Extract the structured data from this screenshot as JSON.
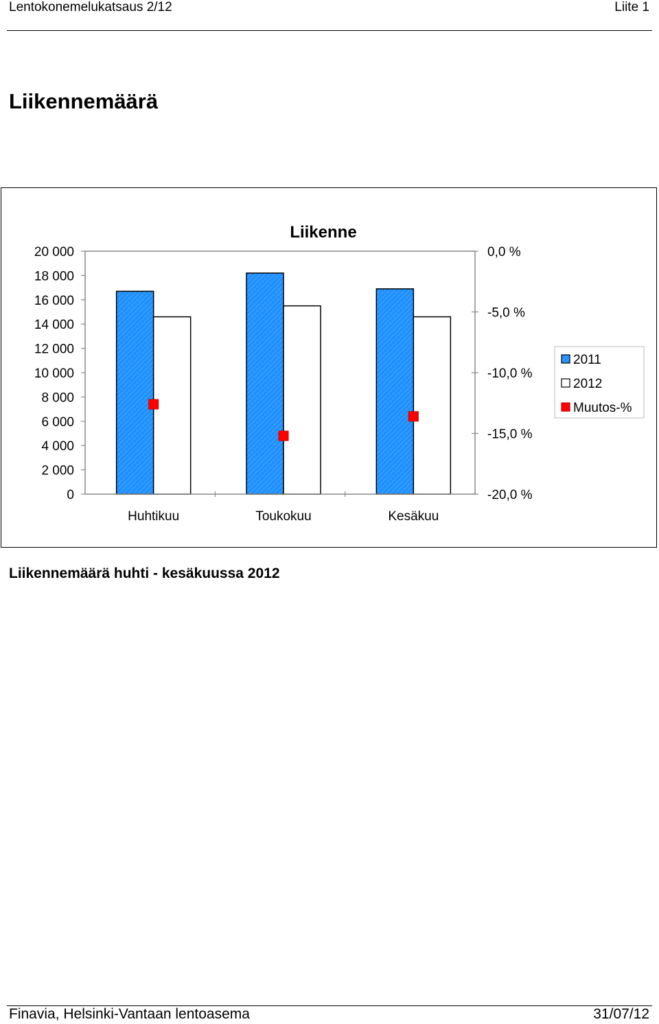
{
  "header": {
    "left": "Lentokonemelukatsaus 2/12",
    "right": "Liite 1"
  },
  "page_title": "Liikennemäärä",
  "caption": "Liikennemäärä huhti - kesäkuussa 2012",
  "footer": {
    "left": "Finavia, Helsinki-Vantaan lentoasema",
    "right": "31/07/12"
  },
  "chart_data": {
    "type": "bar",
    "title": "Liikenne",
    "categories": [
      "Huhtikuu",
      "Toukokuu",
      "Kesäkuu"
    ],
    "series": [
      {
        "name": "2011",
        "axis": "left",
        "kind": "bar",
        "color": "#1E90FF",
        "pattern": "diagonal-hatch",
        "values": [
          16700,
          18200,
          16900
        ]
      },
      {
        "name": "2012",
        "axis": "left",
        "kind": "bar",
        "color": "#FFFFFF",
        "values": [
          14600,
          15500,
          14600
        ]
      },
      {
        "name": "Muutos-%",
        "axis": "right",
        "kind": "marker",
        "color": "#FF0000",
        "values": [
          -12.6,
          -15.2,
          -13.6
        ]
      }
    ],
    "y_left": {
      "min": 0,
      "max": 20000,
      "step": 2000,
      "tick_labels": [
        "0",
        "2 000",
        "4 000",
        "6 000",
        "8 000",
        "10 000",
        "12 000",
        "14 000",
        "16 000",
        "18 000",
        "20 000"
      ]
    },
    "y_right": {
      "min": -20,
      "max": 0,
      "step": 5,
      "tick_labels": [
        "-20,0 %",
        "-15,0 %",
        "-10,0 %",
        "-5,0 %",
        "0,0 %"
      ]
    },
    "grid": false,
    "legend_position": "right"
  }
}
